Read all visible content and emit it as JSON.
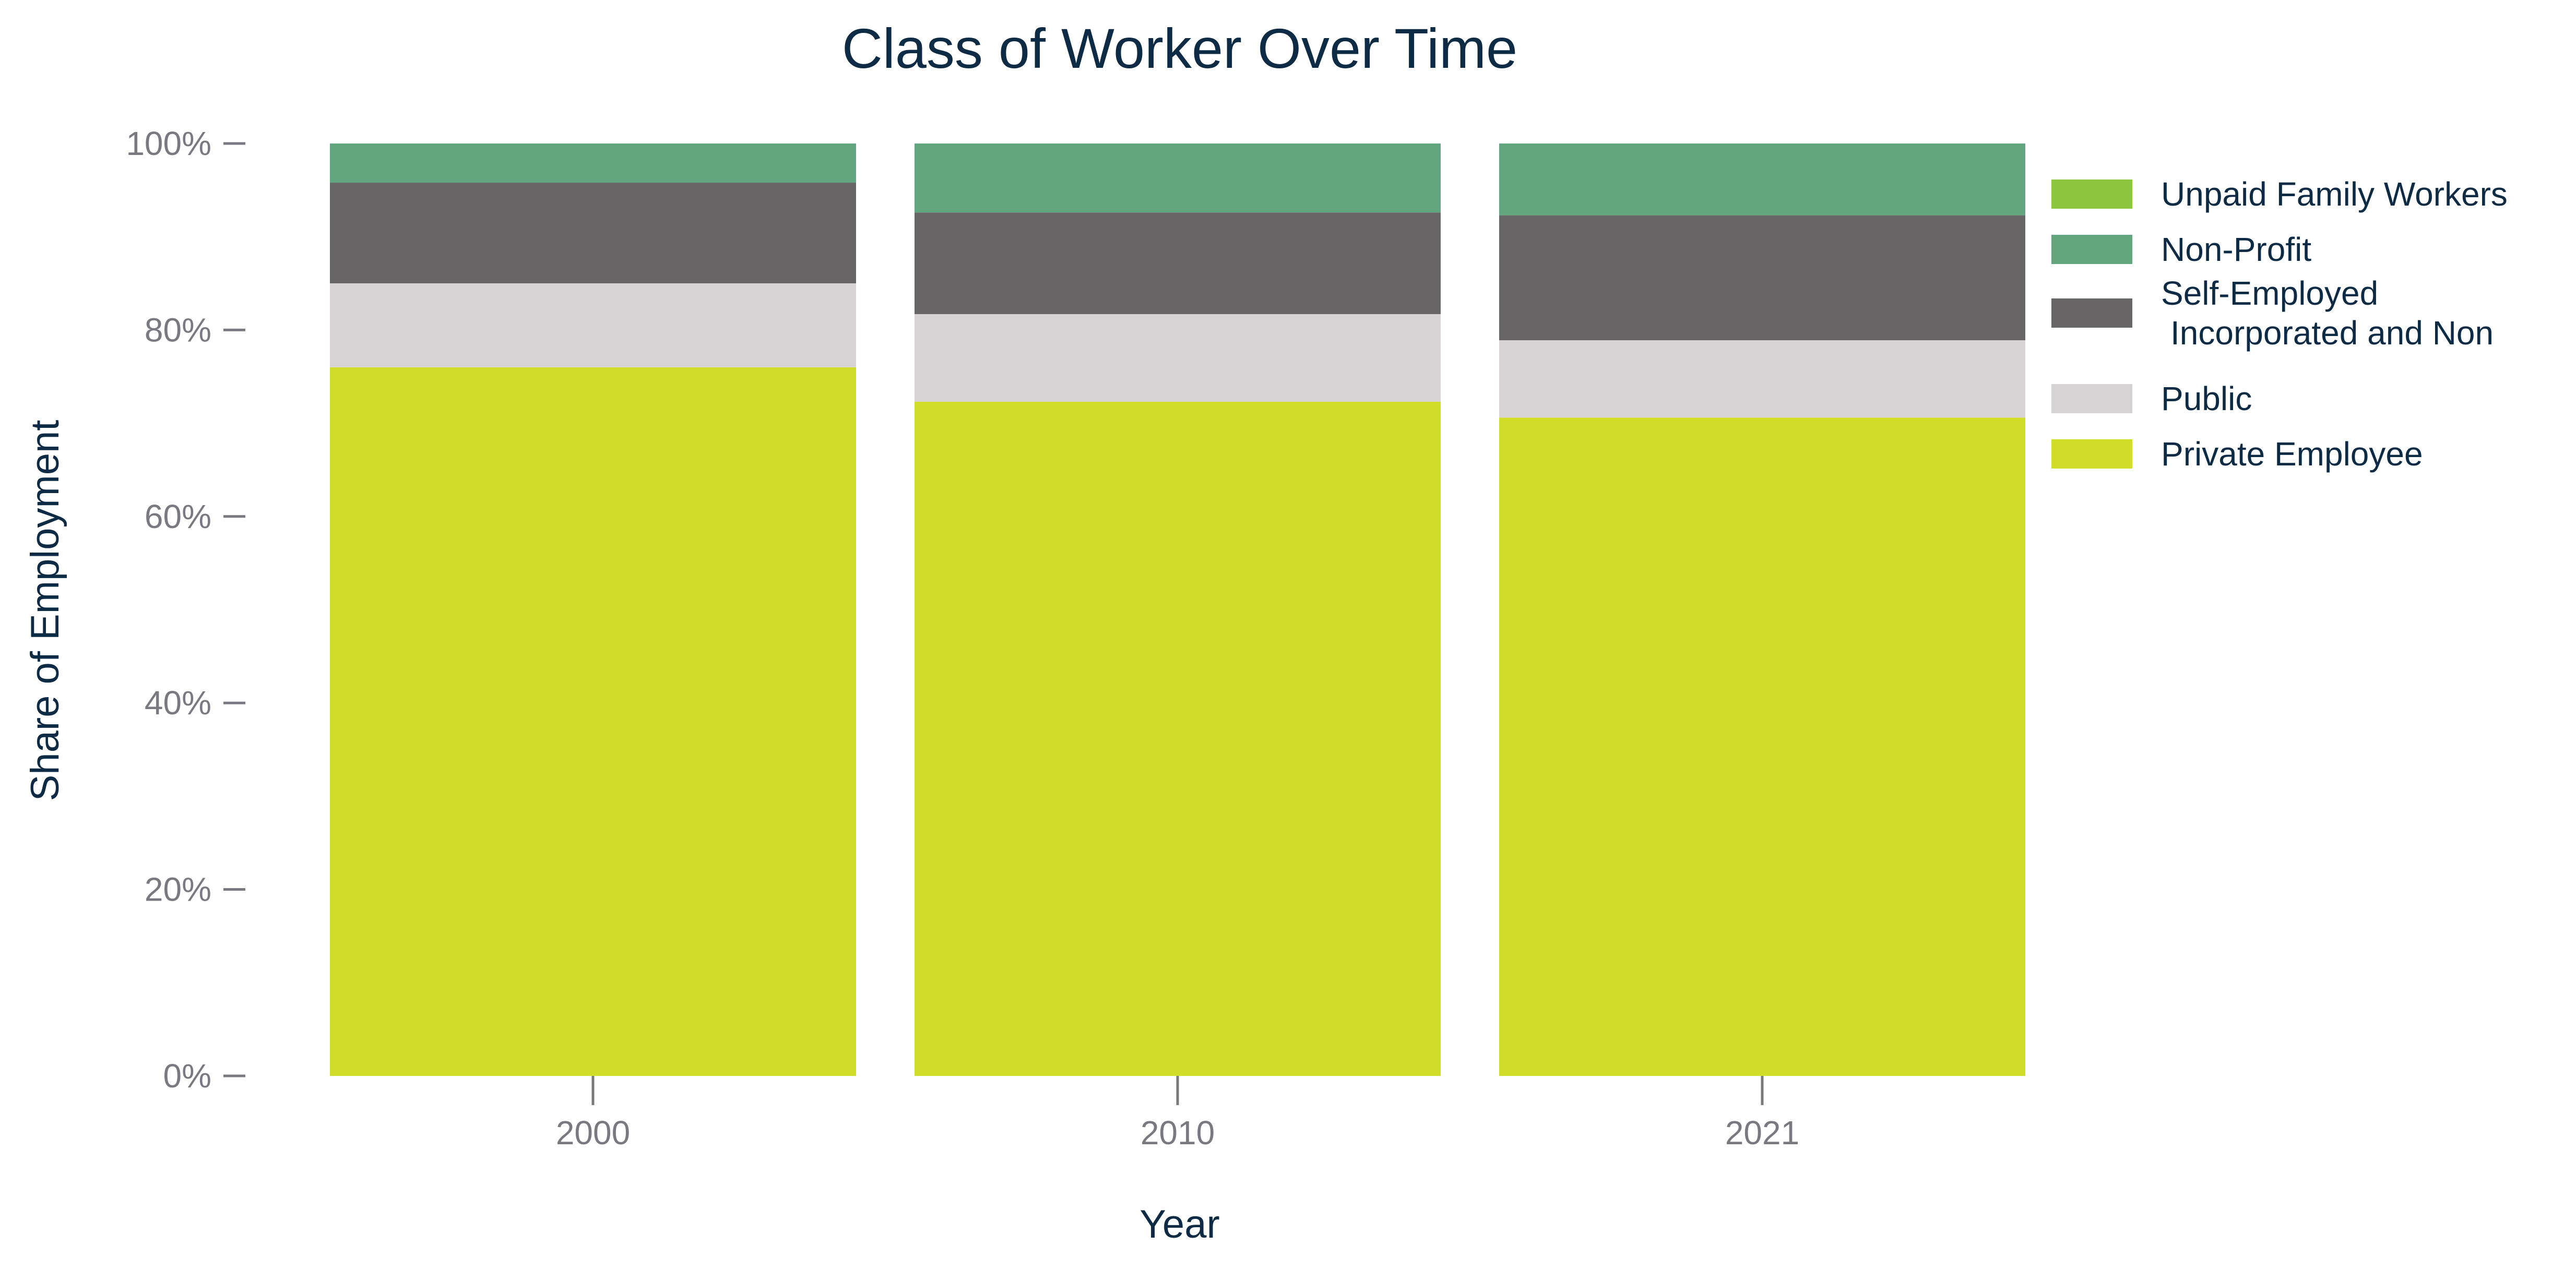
{
  "chart_data": {
    "type": "bar",
    "stacked": true,
    "title": "Class of Worker Over Time",
    "xlabel": "Year",
    "ylabel": "Share of Employment",
    "categories": [
      "2000",
      "2010",
      "2021"
    ],
    "ylim": [
      0,
      100
    ],
    "yticks": [
      "0%",
      "20%",
      "40%",
      "60%",
      "80%",
      "100%"
    ],
    "ytick_values": [
      0,
      20,
      40,
      60,
      80,
      100
    ],
    "grid": false,
    "legend_position": "right",
    "series": [
      {
        "name": "Private Employee",
        "color": "#d1de29",
        "values": [
          76.0,
          72.3,
          70.6
        ]
      },
      {
        "name": "Public",
        "color": "#d7d2d3",
        "values": [
          9.0,
          9.4,
          8.3
        ]
      },
      {
        "name": "Self-Employed Incorporated and Non",
        "color": "#686566",
        "values": [
          10.8,
          10.9,
          13.4
        ]
      },
      {
        "name": "Non-Profit",
        "color": "#62a57f",
        "values": [
          4.2,
          7.4,
          7.7
        ]
      },
      {
        "name": "Unpaid Family Workers",
        "color": "#8dc641",
        "values": [
          0.0,
          0.0,
          0.0
        ]
      }
    ],
    "legend": [
      {
        "lines": [
          "Unpaid Family Workers"
        ],
        "color": "#8dc641"
      },
      {
        "lines": [
          "Non-Profit"
        ],
        "color": "#62a57f"
      },
      {
        "lines": [
          "Self-Employed",
          "Incorporated and Non"
        ],
        "color": "#686566"
      },
      {
        "lines": [
          "Public"
        ],
        "color": "#d7d2d3"
      },
      {
        "lines": [
          "Private Employee"
        ],
        "color": "#d1de29"
      }
    ]
  }
}
